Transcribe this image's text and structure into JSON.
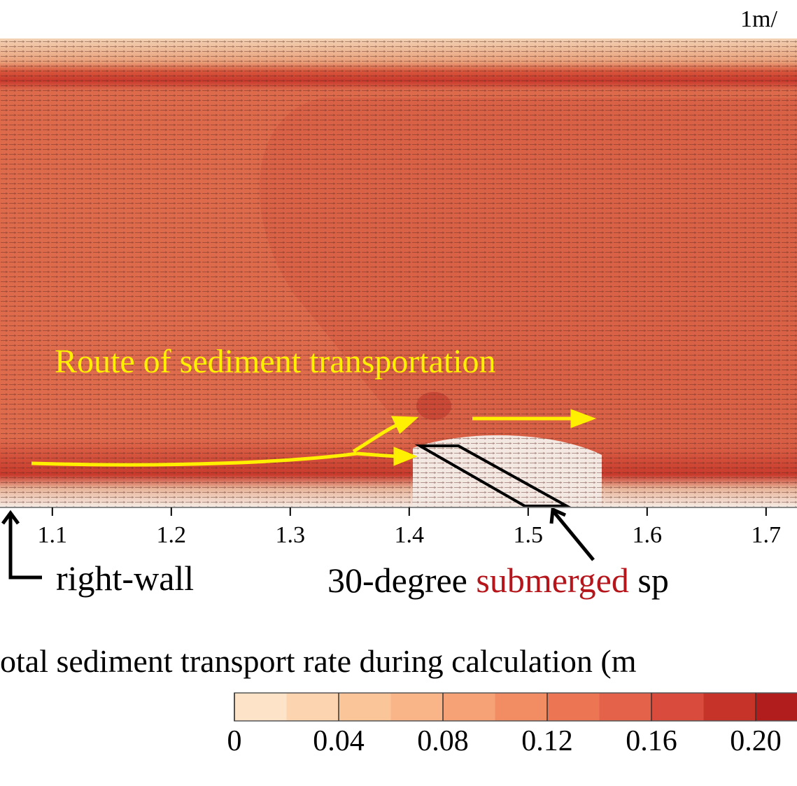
{
  "chart_data": {
    "type": "contour",
    "scale_label": "1m/",
    "annotation": "Route of sediment transportation",
    "wall_label": "right-wall",
    "structure_label": {
      "prefix": "30-degree",
      "highlight": "submerged",
      "suffix": "sp"
    },
    "xlim": [
      1.056,
      1.726
    ],
    "xticks": [
      1.1,
      1.2,
      1.3,
      1.4,
      1.5,
      1.6,
      1.7
    ],
    "colorbar": {
      "title": "otal sediment transport rate during calculation (m",
      "lim": [
        0,
        0.22
      ],
      "ticks": [
        0,
        0.04,
        0.08,
        0.12,
        0.16,
        {
          "value": 0.2,
          "label": "0.20"
        }
      ],
      "colors": [
        "#fde3c8",
        "#fcd5b0",
        "#fbc59a",
        "#f9b487",
        "#f6a276",
        "#f28c63",
        "#ec7654",
        "#e5624a",
        "#d94b3c",
        "#c53329",
        "#b01d1c"
      ]
    }
  }
}
